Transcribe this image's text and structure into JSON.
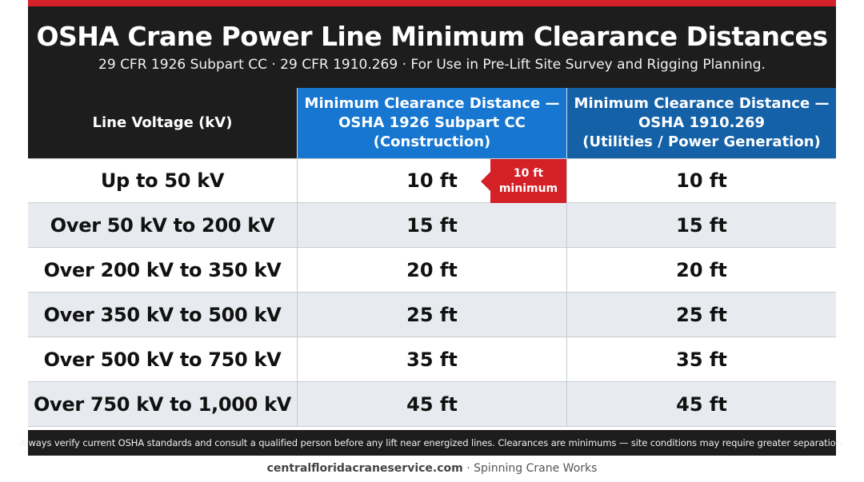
{
  "header": {
    "title": "OSHA Crane Power Line Minimum Clearance Distances",
    "subtitle": "29 CFR 1926 Subpart CC · 29 CFR 1910.269 · For Use in Pre-Lift Site Survey and Rigging Planning."
  },
  "table": {
    "columns": [
      {
        "lines": [
          "Line Voltage (kV)"
        ]
      },
      {
        "lines": [
          "Minimum Clearance Distance —",
          "OSHA 1926 Subpart CC",
          "(Construction)"
        ]
      },
      {
        "lines": [
          "Minimum Clearance Distance —",
          "OSHA 1910.269",
          "(Utilities / Power Generation)"
        ]
      }
    ],
    "rows": [
      {
        "voltage": "Up to 50 kV",
        "construction": "10 ft",
        "utilities": "10 ft"
      },
      {
        "voltage": "Over 50 kV to 200 kV",
        "construction": "15 ft",
        "utilities": "15 ft"
      },
      {
        "voltage": "Over 200 kV to 350 kV",
        "construction": "20 ft",
        "utilities": "20 ft"
      },
      {
        "voltage": "Over 350 kV to 500 kV",
        "construction": "25 ft",
        "utilities": "25 ft"
      },
      {
        "voltage": "Over 500 kV to 750 kV",
        "construction": "35 ft",
        "utilities": "35 ft"
      },
      {
        "voltage": "Over 750 kV to 1,000 kV",
        "construction": "45 ft",
        "utilities": "45 ft"
      }
    ],
    "badge": {
      "line1": "10 ft",
      "line2": "minimum"
    }
  },
  "footnote": "Always verify current OSHA standards and consult a qualified person before any lift near energized lines. Clearances are minimums — site conditions may require greater separation.",
  "credit": {
    "site": "centralfloridacraneservice.com",
    "separator": " · ",
    "org": "Spinning Crane Works"
  },
  "colors": {
    "accent_red": "#d42027",
    "header_dark": "#1d1d1d",
    "construction_blue": "#1777d0",
    "utilities_blue": "#1561a8",
    "row_alt": "#e7eaef"
  }
}
